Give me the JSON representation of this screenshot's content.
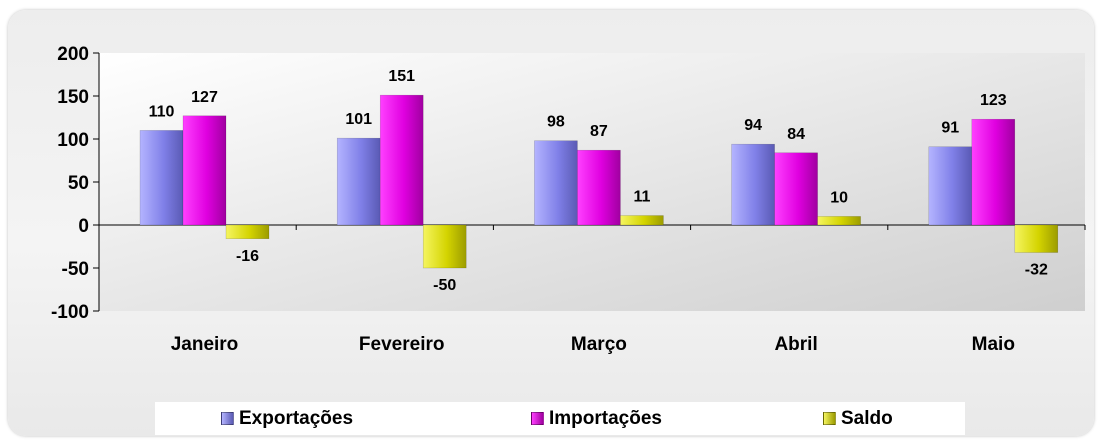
{
  "chart_data": {
    "type": "bar",
    "categories": [
      "Janeiro",
      "Fevereiro",
      "Março",
      "Abril",
      "Maio"
    ],
    "series": [
      {
        "name": "Exportações",
        "values": [
          110,
          101,
          98,
          94,
          91
        ],
        "color": "#8c8cf0"
      },
      {
        "name": "Importações",
        "values": [
          127,
          151,
          87,
          84,
          123
        ],
        "color": "#e600e6"
      },
      {
        "name": "Saldo",
        "values": [
          -16,
          -50,
          11,
          10,
          -32
        ],
        "color": "#d8d800"
      }
    ],
    "data_labels": true,
    "yticks": [
      200,
      150,
      100,
      50,
      0,
      -50,
      -100
    ],
    "ylim": [
      -100,
      200
    ],
    "grid": false,
    "legend_position": "bottom",
    "title": "",
    "xlabel": "",
    "ylabel": ""
  }
}
